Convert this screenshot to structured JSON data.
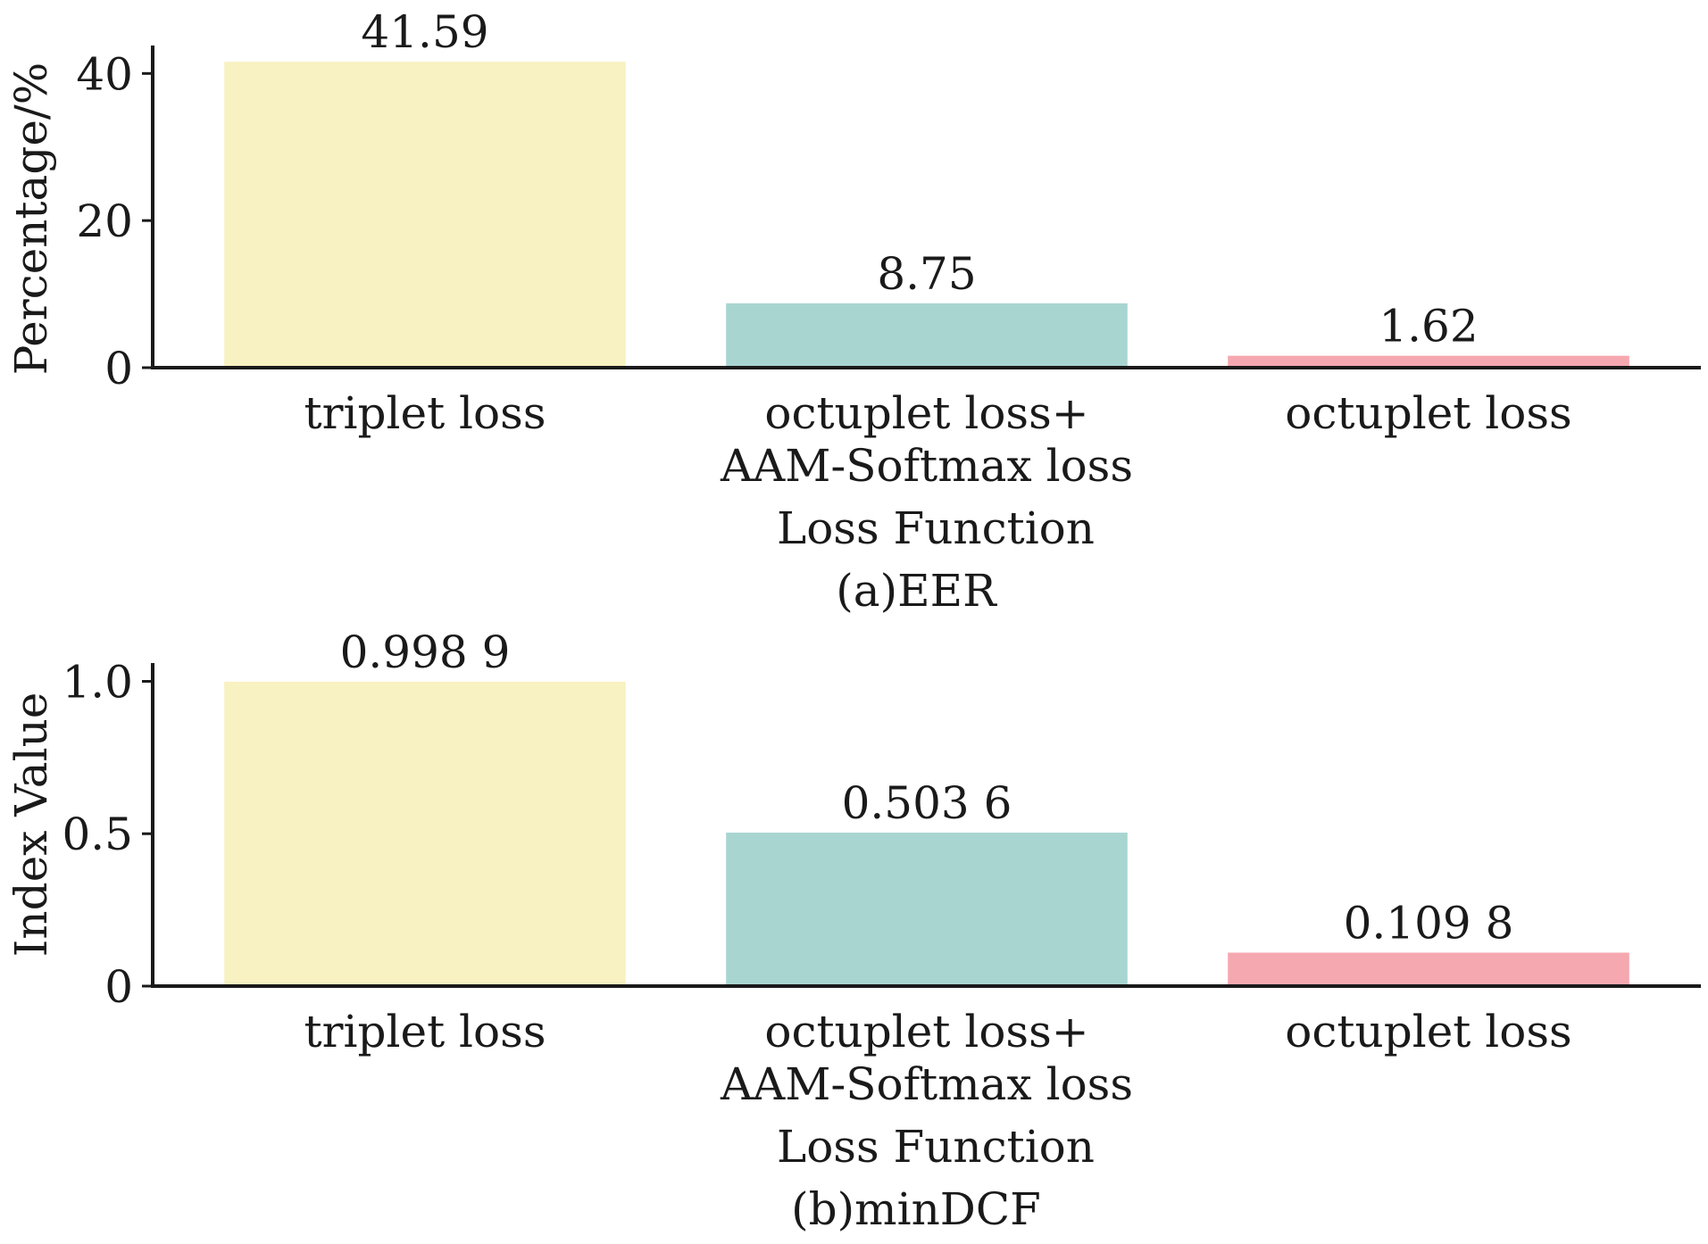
{
  "chart_data": [
    {
      "type": "bar",
      "caption": "(a)EER",
      "xlabel": "Loss Function",
      "ylabel": "Percentage/%",
      "categories": [
        [
          "triplet loss"
        ],
        [
          "octuplet loss+",
          "AAM-Softmax loss"
        ],
        [
          "octuplet loss"
        ]
      ],
      "values": [
        41.59,
        8.75,
        1.62
      ],
      "value_labels": [
        "41.59",
        "8.75",
        "1.62"
      ],
      "yticks": [
        0,
        20,
        40
      ],
      "ytick_labels": [
        "0",
        "20",
        "40"
      ],
      "ylim": [
        0,
        43.8
      ],
      "colors": [
        "#F8F1C1",
        "#A9D5D1",
        "#F6A8B0"
      ],
      "grid": false,
      "legend": false
    },
    {
      "type": "bar",
      "caption": "(b)minDCF",
      "xlabel": "Loss Function",
      "ylabel": "Index Value",
      "categories": [
        [
          "triplet loss"
        ],
        [
          "octuplet loss+",
          "AAM-Softmax loss"
        ],
        [
          "octuplet loss"
        ]
      ],
      "values": [
        0.9989,
        0.5036,
        0.1098
      ],
      "value_labels": [
        "0.998 9",
        "0.503 6",
        "0.109 8"
      ],
      "yticks": [
        0,
        0.5,
        1.0
      ],
      "ytick_labels": [
        "0",
        "0.5",
        "1.0"
      ],
      "ylim": [
        0,
        1.06
      ],
      "colors": [
        "#F8F1C1",
        "#A9D5D1",
        "#F6A8B0"
      ],
      "grid": false,
      "legend": false
    }
  ]
}
